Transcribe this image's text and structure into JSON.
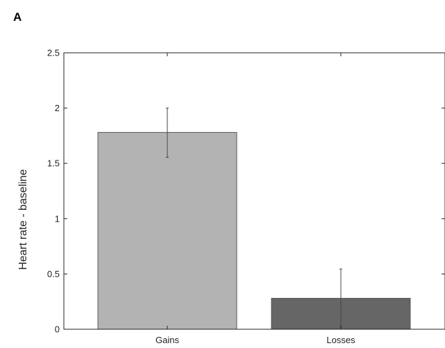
{
  "panel_label": "A",
  "chart_data": {
    "type": "bar",
    "categories": [
      "Gains",
      "Losses"
    ],
    "values": [
      1.78,
      0.28
    ],
    "error_low": [
      1.555,
      0.02
    ],
    "error_high": [
      2.0,
      0.545
    ],
    "ylabel": "Heart rate - baseline",
    "xlabel": "",
    "ylim": [
      0,
      2.5
    ],
    "yticks": [
      0,
      0.5,
      1,
      1.5,
      2,
      2.5
    ],
    "ytick_labels": [
      "0",
      "0.5",
      "1",
      "1.5",
      "2",
      "2.5"
    ],
    "bar_colors": [
      "#b3b3b3",
      "#666666"
    ],
    "grid": false,
    "legend": "none"
  }
}
